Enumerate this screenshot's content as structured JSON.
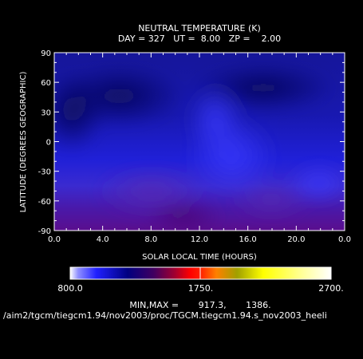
{
  "chart_data": {
    "type": "heatmap",
    "title": "NEUTRAL TEMPERATURE (K)",
    "subtitle": "DAY = 327   UT =  8.00   ZP =    2.00",
    "xlabel": "SOLAR LOCAL TIME (HOURS)",
    "ylabel": "LATITUDE (DEGREES GEOGRAPHIC)",
    "xlim": [
      0,
      24
    ],
    "ylim": [
      -90,
      90
    ],
    "x_ticks": [
      "0.0",
      "4.0",
      "8.0",
      "12.0",
      "16.0",
      "20.0",
      "0.0"
    ],
    "y_ticks": [
      "90",
      "60",
      "30",
      "0",
      "-30",
      "-60",
      "-90"
    ],
    "x_tick_values": [
      0,
      4,
      8,
      12,
      16,
      20,
      24
    ],
    "y_tick_values": [
      90,
      60,
      30,
      0,
      -30,
      -60,
      -90
    ],
    "colorbar": {
      "min": 800.0,
      "max": 2700.0,
      "labels": [
        "800.0",
        "1750.",
        "2700."
      ],
      "label_values": [
        800,
        1750,
        2700
      ]
    },
    "min_max_text": "MIN,MAX =       917.3,       1386.",
    "footer_path": "/aim2/tgcm/tiegcm1.94/nov2003/proc/TGCM.tiegcm1.94.s_nov2003_heeli"
  }
}
